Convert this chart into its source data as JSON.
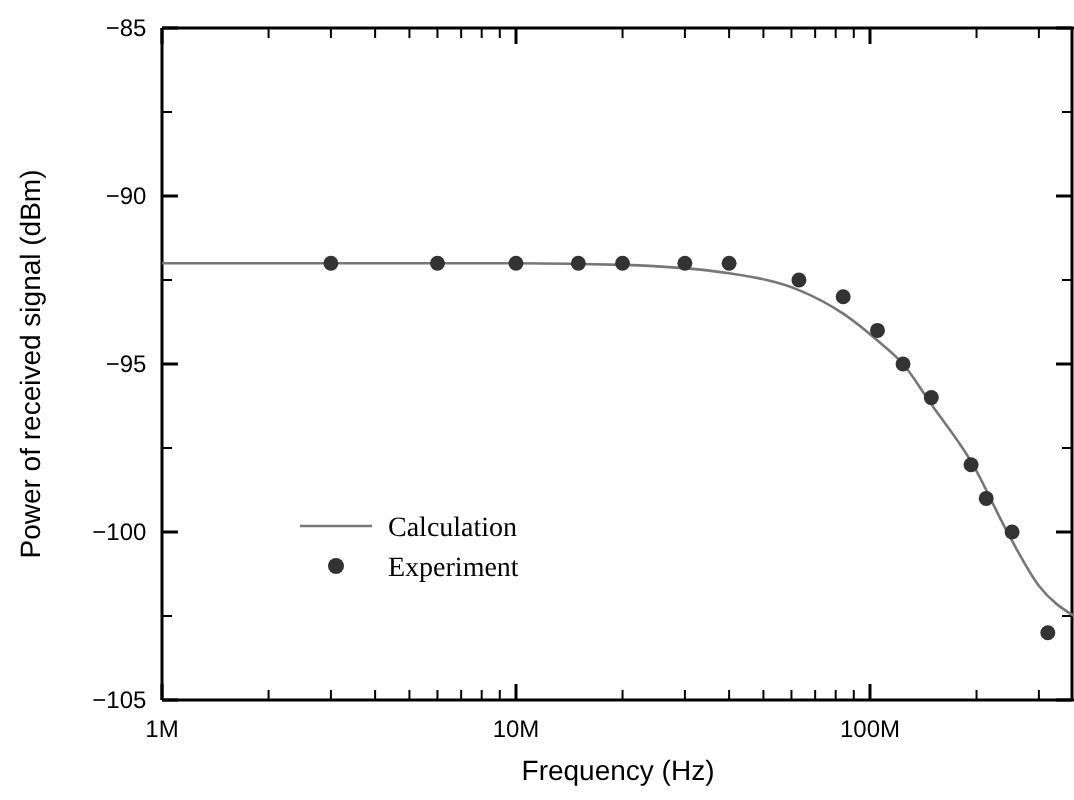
{
  "chart_data": {
    "type": "line",
    "xlabel": "Frequency (Hz)",
    "ylabel": "Power of received signal (dBm)",
    "log": "x",
    "xlim": [
      1000000,
      377000000
    ],
    "ylim": [
      -105,
      -85
    ],
    "xticks": [
      {
        "value": 1000000,
        "label": "1M"
      },
      {
        "value": 2000000,
        "label": null
      },
      {
        "value": 3000000,
        "label": null
      },
      {
        "value": 4000000,
        "label": null
      },
      {
        "value": 5000000,
        "label": null
      },
      {
        "value": 6000000,
        "label": null
      },
      {
        "value": 7000000,
        "label": null
      },
      {
        "value": 8000000,
        "label": null
      },
      {
        "value": 9000000,
        "label": null
      },
      {
        "value": 10000000,
        "label": "10M"
      },
      {
        "value": 20000000,
        "label": null
      },
      {
        "value": 30000000,
        "label": null
      },
      {
        "value": 40000000,
        "label": null
      },
      {
        "value": 50000000,
        "label": null
      },
      {
        "value": 60000000,
        "label": null
      },
      {
        "value": 70000000,
        "label": null
      },
      {
        "value": 80000000,
        "label": null
      },
      {
        "value": 90000000,
        "label": null
      },
      {
        "value": 100000000,
        "label": "100M"
      },
      {
        "value": 200000000,
        "label": null
      },
      {
        "value": 300000000,
        "label": null
      }
    ],
    "yticks": [
      -105,
      {
        "value": -102.5,
        "label": null
      },
      -100,
      {
        "value": -97.5,
        "label": null
      },
      -95,
      {
        "value": -92.5,
        "label": null
      },
      -90,
      {
        "value": -87.5,
        "label": null
      },
      -85
    ],
    "legend": "bottom left",
    "grid": false,
    "series": [
      {
        "name": "Calculation",
        "color": "#777777",
        "marker": "none",
        "line_style": "solid",
        "x": [
          1000000,
          10000000,
          20000000,
          40000000,
          63000000,
          84000000,
          105000000,
          124000000,
          149000000,
          193000000,
          250000000,
          300000000,
          377000000
        ],
        "values": [
          -92,
          -92,
          -92.05,
          -92.3,
          -92.8,
          -93.5,
          -94.3,
          -95,
          -96.2,
          -97.9,
          -100.2,
          -101.6,
          -102.5
        ]
      },
      {
        "name": "Experiment",
        "type": "scatter",
        "color": "#333333",
        "marker": "circle",
        "x": [
          3000000,
          6000000,
          10000000,
          15000000,
          20000000,
          30000000,
          40000000,
          63000000,
          84000000,
          105000000,
          124000000,
          149000000,
          193000000,
          213000000,
          252000000,
          318000000
        ],
        "values": [
          -92,
          -92,
          -92,
          -92,
          -92,
          -92,
          -92,
          -92.5,
          -93,
          -94,
          -95,
          -96,
          -98,
          -99,
          -100,
          -103
        ]
      }
    ]
  }
}
